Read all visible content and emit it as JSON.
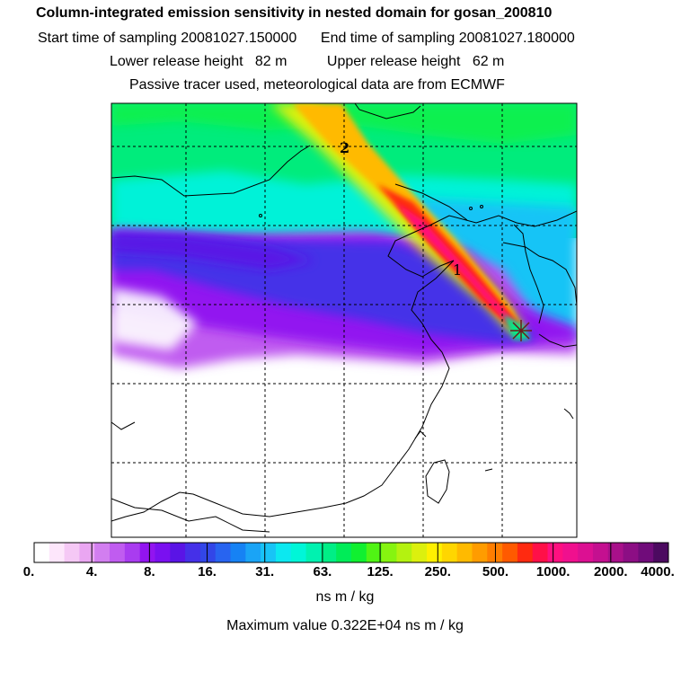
{
  "header": {
    "title": "Column-integrated emission sensitivity in nested domain for gosan_200810",
    "start_label": "Start time of sampling",
    "start_value": "20081027.150000",
    "end_label": "End time of sampling",
    "end_value": "20081027.180000",
    "lower_label": "Lower release height",
    "lower_value": "82 m",
    "upper_label": "Upper release height",
    "upper_value": "62 m",
    "note": "Passive tracer used, meteorological data are from ECMWF"
  },
  "map": {
    "markers": [
      "1",
      "2"
    ],
    "release_site_icon": "star-burst-icon"
  },
  "colorbar": {
    "ticks": [
      "0.",
      "4.",
      "8.",
      "16.",
      "31.",
      "63.",
      "125.",
      "250.",
      "500.",
      "1000.",
      "2000.",
      "4000."
    ],
    "colors": [
      "#ffffff",
      "#fde6fb",
      "#f5c8f5",
      "#eaa6f2",
      "#d27ef0",
      "#c05cf0",
      "#a93cf0",
      "#9214f0",
      "#7a10f0",
      "#5a14e6",
      "#4530e8",
      "#3246e8",
      "#2864f0",
      "#1682f4",
      "#1aa4f6",
      "#18c4f6",
      "#0ce8f0",
      "#00f6d8",
      "#00f2b0",
      "#00ee86",
      "#00ec58",
      "#10f030",
      "#50f414",
      "#86f410",
      "#b4f210",
      "#dcf00e",
      "#fff000",
      "#ffd600",
      "#ffba00",
      "#ff9c00",
      "#ff7e00",
      "#ff5a00",
      "#ff2a10",
      "#ff1048",
      "#ff1080",
      "#f0108e",
      "#dc1092",
      "#c41090",
      "#a8108a",
      "#8c0e84",
      "#700c7a",
      "#4c0a60"
    ],
    "unit": "ns m / kg"
  },
  "footer": {
    "max_label": "Maximum value",
    "max_value": "0.322E+04",
    "max_unit": "ns m / kg"
  }
}
